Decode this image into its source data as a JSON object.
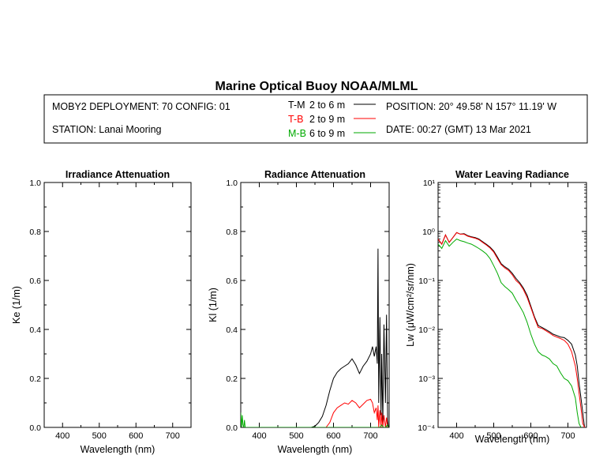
{
  "title": "Marine Optical Buoy NOAA/MLML",
  "info": {
    "deployment": "MOBY2 DEPLOYMENT: 70 CONFIG: 01",
    "station": "STATION: Lanai Mooring",
    "position": "POSITION: 20° 49.58' N   157° 11.19' W",
    "date": "DATE: 00:27 (GMT) 13 Mar 2021"
  },
  "legend": [
    {
      "prefix": "T-M",
      "range": "2 to 6  m",
      "color": "#000000"
    },
    {
      "prefix": "T-B",
      "range": "2 to 9  m",
      "color": "#ff0000"
    },
    {
      "prefix": "M-B",
      "range": "6 to 9  m",
      "color": "#00aa00"
    }
  ],
  "chart_data": [
    {
      "type": "line",
      "title": "Irradiance Attenuation",
      "xlabel": "Wavelength (nm)",
      "ylabel": "Ke  (1/m)",
      "xlim": [
        350,
        750
      ],
      "ylim": [
        0,
        1
      ],
      "xticks": [
        "400",
        "500",
        "600",
        "700"
      ],
      "yticks": [
        "0.0",
        "0.2",
        "0.4",
        "0.6",
        "0.8",
        "1.0"
      ],
      "series": []
    },
    {
      "type": "line",
      "title": "Radiance Attenuation",
      "xlabel": "Wavelength (nm)",
      "ylabel": "Kl  (1/m)",
      "xlim": [
        350,
        750
      ],
      "ylim": [
        0,
        1
      ],
      "xticks": [
        "400",
        "500",
        "600",
        "700"
      ],
      "yticks": [
        "0.0",
        "0.2",
        "0.4",
        "0.6",
        "0.8",
        "1.0"
      ],
      "series": [
        {
          "name": "T-M",
          "color": "#000000",
          "x": [
            540,
            550,
            560,
            570,
            580,
            590,
            600,
            610,
            620,
            630,
            640,
            650,
            660,
            670,
            680,
            690,
            700,
            705,
            710,
            715,
            718,
            720,
            722,
            725,
            728,
            730,
            733,
            736,
            740,
            743,
            746,
            748
          ],
          "y": [
            0.0,
            0.005,
            0.02,
            0.045,
            0.09,
            0.15,
            0.2,
            0.225,
            0.24,
            0.25,
            0.26,
            0.28,
            0.255,
            0.22,
            0.25,
            0.27,
            0.3,
            0.33,
            0.29,
            0.33,
            0.26,
            0.73,
            0.1,
            0.45,
            0.05,
            0.3,
            0.02,
            0.42,
            0.1,
            0.46,
            0.03,
            0.0
          ]
        },
        {
          "name": "T-B",
          "color": "#ff0000",
          "x": [
            580,
            590,
            600,
            610,
            620,
            630,
            640,
            650,
            660,
            670,
            680,
            690,
            700,
            705,
            710,
            715,
            718,
            720,
            722,
            725,
            728,
            730,
            733,
            736,
            740,
            743,
            746,
            748
          ],
          "y": [
            0.0,
            0.02,
            0.06,
            0.08,
            0.09,
            0.1,
            0.095,
            0.11,
            0.1,
            0.08,
            0.095,
            0.11,
            0.115,
            0.1,
            0.06,
            0.08,
            0.03,
            0.09,
            0.0,
            0.07,
            0.0,
            0.06,
            0.0,
            0.05,
            0.0,
            0.04,
            0.0,
            0.0
          ]
        },
        {
          "name": "M-B",
          "color": "#00aa00",
          "x": [
            350,
            352,
            354,
            356,
            358,
            360,
            362,
            364,
            720,
            725,
            730,
            735,
            740,
            745,
            748
          ],
          "y": [
            0.06,
            0.0,
            0.05,
            0.01,
            0.0,
            0.03,
            0.0,
            0.0,
            0.0,
            0.0,
            0.01,
            0.0,
            0.0,
            0.01,
            0.0
          ]
        }
      ]
    },
    {
      "type": "line",
      "title": "Water Leaving Radiance",
      "xlabel": "Wavelength (nm)",
      "ylabel": "Lw  (μW/cm²/sr/nm)",
      "yscale": "log",
      "xlim": [
        350,
        750
      ],
      "ylim": [
        0.0001,
        10
      ],
      "xticks": [
        "400",
        "500",
        "600",
        "700"
      ],
      "yticks": [
        "10⁻⁴",
        "10⁻³",
        "10⁻²",
        "10⁻¹",
        "10⁰",
        "10¹"
      ],
      "series": [
        {
          "name": "T-M",
          "color": "#000000",
          "x": [
            350,
            360,
            370,
            380,
            390,
            400,
            410,
            420,
            430,
            440,
            450,
            460,
            470,
            480,
            490,
            500,
            510,
            520,
            530,
            540,
            550,
            560,
            570,
            580,
            590,
            600,
            610,
            620,
            630,
            640,
            650,
            660,
            670,
            680,
            690,
            700,
            710,
            720,
            725,
            730,
            735,
            740,
            745
          ],
          "y": [
            0.7,
            0.55,
            0.85,
            0.6,
            0.75,
            0.95,
            0.88,
            0.9,
            0.82,
            0.78,
            0.75,
            0.7,
            0.62,
            0.55,
            0.48,
            0.4,
            0.3,
            0.22,
            0.19,
            0.17,
            0.14,
            0.11,
            0.09,
            0.07,
            0.05,
            0.03,
            0.018,
            0.012,
            0.011,
            0.01,
            0.009,
            0.008,
            0.0075,
            0.007,
            0.0068,
            0.006,
            0.005,
            0.003,
            0.0018,
            0.0008,
            0.0004,
            0.0002,
            0.0001
          ]
        },
        {
          "name": "T-B",
          "color": "#ff0000",
          "x": [
            350,
            360,
            370,
            380,
            390,
            400,
            410,
            420,
            430,
            440,
            450,
            460,
            470,
            480,
            490,
            500,
            510,
            520,
            530,
            540,
            550,
            560,
            570,
            580,
            590,
            600,
            610,
            620,
            630,
            640,
            650,
            660,
            670,
            680,
            690,
            700,
            710,
            720,
            725,
            730,
            735,
            740,
            745
          ],
          "y": [
            0.7,
            0.55,
            0.85,
            0.6,
            0.75,
            0.95,
            0.88,
            0.88,
            0.8,
            0.76,
            0.73,
            0.68,
            0.6,
            0.53,
            0.46,
            0.38,
            0.28,
            0.21,
            0.18,
            0.16,
            0.13,
            0.1,
            0.085,
            0.065,
            0.045,
            0.028,
            0.017,
            0.011,
            0.0105,
            0.0095,
            0.0085,
            0.0075,
            0.007,
            0.0065,
            0.006,
            0.005,
            0.0035,
            0.0018,
            0.001,
            0.0005,
            0.00025,
            0.00012,
            0.0001
          ]
        },
        {
          "name": "M-B",
          "color": "#00aa00",
          "x": [
            350,
            360,
            370,
            380,
            390,
            400,
            410,
            420,
            430,
            440,
            450,
            460,
            470,
            480,
            490,
            500,
            510,
            520,
            530,
            540,
            550,
            560,
            570,
            580,
            590,
            600,
            610,
            620,
            630,
            640,
            650,
            660,
            670,
            680,
            690,
            700,
            710,
            720,
            725,
            730,
            735
          ],
          "y": [
            0.55,
            0.45,
            0.65,
            0.5,
            0.6,
            0.7,
            0.65,
            0.62,
            0.58,
            0.55,
            0.5,
            0.45,
            0.4,
            0.35,
            0.28,
            0.2,
            0.14,
            0.09,
            0.075,
            0.065,
            0.055,
            0.04,
            0.03,
            0.022,
            0.014,
            0.008,
            0.005,
            0.0035,
            0.003,
            0.0028,
            0.0025,
            0.002,
            0.0018,
            0.0013,
            0.001,
            0.0009,
            0.0007,
            0.0004,
            0.0002,
            0.00012,
            0.0001
          ]
        }
      ]
    }
  ]
}
